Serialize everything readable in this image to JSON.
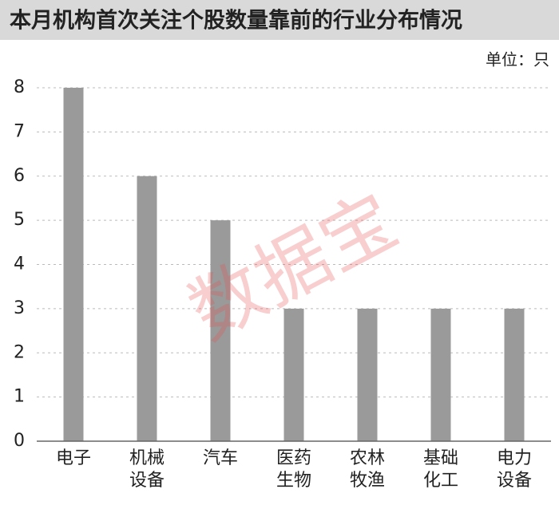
{
  "chart_data": {
    "type": "bar",
    "title": "本月机构首次关注个股数量靠前的行业分布情况",
    "unit_note": "单位：只",
    "watermark": "数据宝",
    "categories": [
      "电子",
      "机械设备",
      "汽车",
      "医药生物",
      "农林牧渔",
      "基础化工",
      "电力设备"
    ],
    "values": [
      8,
      6,
      5,
      3,
      3,
      3,
      3
    ],
    "color": "#9a9a9a",
    "ylim": [
      0,
      8
    ],
    "yticks": [
      0,
      1,
      2,
      3,
      4,
      5,
      6,
      7,
      8
    ],
    "grid": true
  }
}
